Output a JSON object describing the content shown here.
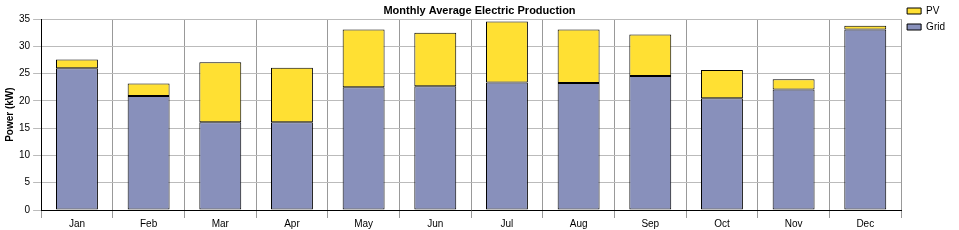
{
  "chart_data": {
    "type": "bar",
    "title": "Monthly Average Electric Production",
    "y_label": "Power (kW)",
    "categories": [
      "Jan",
      "Feb",
      "Mar",
      "Apr",
      "May",
      "Jun",
      "Jul",
      "Aug",
      "Sep",
      "Oct",
      "Nov",
      "Dec"
    ],
    "series": [
      {
        "name": "Grid",
        "color": "#8890bb",
        "values": [
          26.0,
          20.9,
          16.1,
          16.1,
          22.5,
          22.7,
          23.4,
          23.3,
          24.6,
          20.5,
          22.1,
          33.1
        ]
      },
      {
        "name": "PV",
        "color": "#ffe033",
        "values": [
          1.6,
          2.3,
          11.0,
          10.0,
          10.6,
          9.8,
          11.2,
          9.8,
          7.6,
          5.2,
          1.9,
          0.7
        ]
      }
    ],
    "ylim": [
      0,
      35
    ],
    "yticks": [
      0,
      5,
      10,
      15,
      20,
      25,
      30,
      35
    ],
    "stacked": true,
    "grid": true,
    "legend": "right"
  }
}
